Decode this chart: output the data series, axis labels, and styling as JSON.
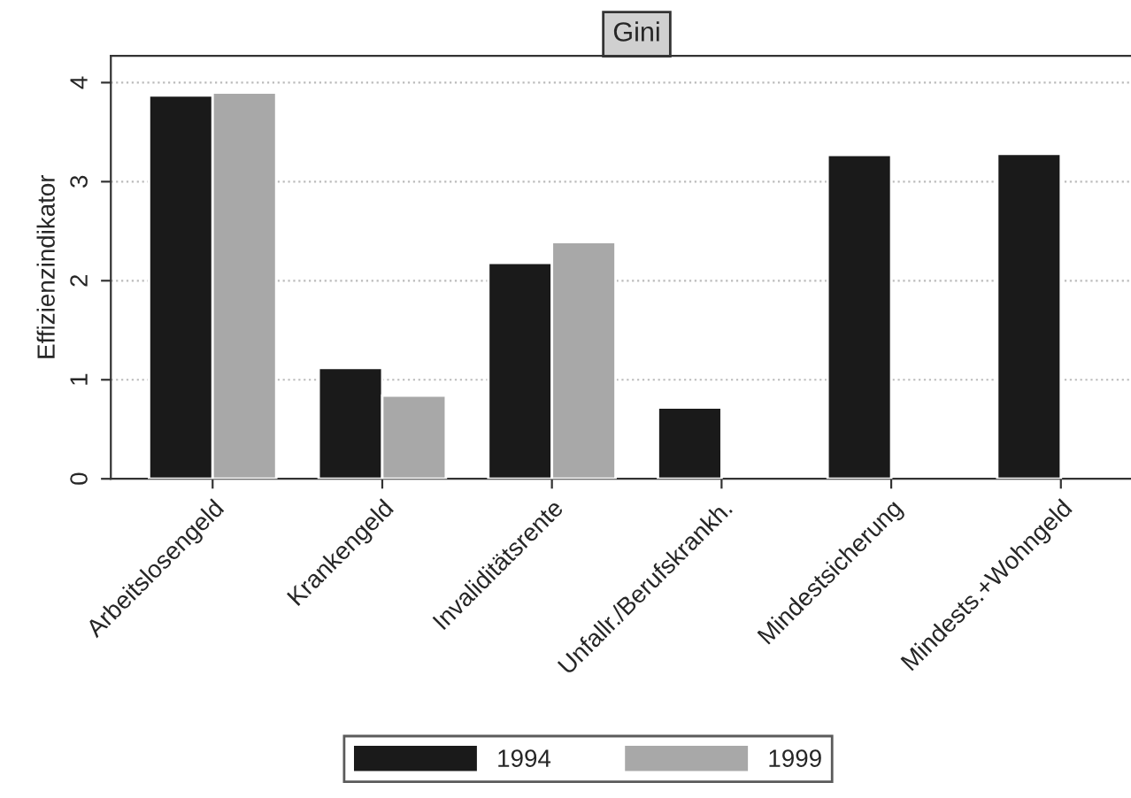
{
  "chart_data": {
    "type": "bar",
    "title": "Gini",
    "ylabel": "Effizienzindikator",
    "categories": [
      "Arbeitslosengeld",
      "Krankengeld",
      "Invaliditätsrente",
      "Unfallr./Berufskrankh.",
      "Mindestsicherung",
      "Mindests.+Wohngeld"
    ],
    "series": [
      {
        "name": "1994",
        "color": "#1a1a1a",
        "values": [
          3.87,
          1.12,
          2.18,
          0.72,
          3.27,
          3.28
        ]
      },
      {
        "name": "1999",
        "color": "#a8a8a8",
        "values": [
          3.9,
          0.84,
          2.39,
          null,
          null,
          null
        ]
      }
    ],
    "ylim": [
      0,
      4.27
    ],
    "yticks": [
      0,
      1,
      2,
      3,
      4
    ],
    "grid": "y",
    "legend": "bottom"
  }
}
